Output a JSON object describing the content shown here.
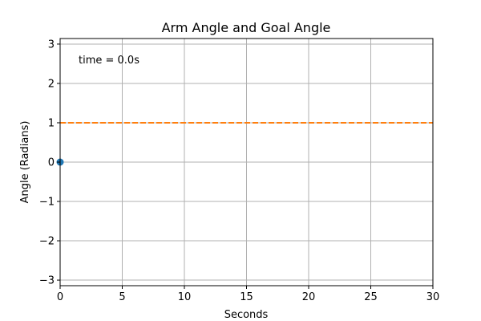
{
  "chart_data": {
    "type": "line",
    "title": "Arm Angle and Goal Angle",
    "xlabel": "Seconds",
    "ylabel": "Angle (Radians)",
    "xlim": [
      0,
      30
    ],
    "ylim": [
      -3.14159,
      3.14159
    ],
    "xticks": [
      0,
      5,
      10,
      15,
      20,
      25,
      30
    ],
    "xtick_labels": [
      "0",
      "5",
      "10",
      "15",
      "20",
      "25",
      "30"
    ],
    "yticks": [
      -3,
      -2,
      -1,
      0,
      1,
      2,
      3
    ],
    "ytick_labels": [
      "−3",
      "−2",
      "−1",
      "0",
      "1",
      "2",
      "3"
    ],
    "grid": true,
    "annotation": "time = 0.0s",
    "series": [
      {
        "style": "point",
        "color": "#1f77b4",
        "x": [
          0
        ],
        "y": [
          0
        ]
      },
      {
        "style": "dashed-line",
        "color": "#ff7f0e",
        "x": [
          0,
          30
        ],
        "y": [
          1,
          1
        ]
      }
    ]
  }
}
